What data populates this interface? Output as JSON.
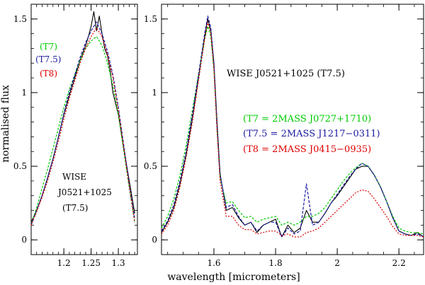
{
  "chart_data": [
    {
      "type": "line",
      "panel": "left",
      "xlim": [
        1.14,
        1.335
      ],
      "ylim": [
        -0.1,
        1.6
      ],
      "xticks": [
        1.2,
        1.25,
        1.3
      ],
      "xtick_labels": [
        "1.2",
        "1.25",
        "1.3"
      ],
      "yticks": [
        0,
        0.5,
        1,
        1.5
      ],
      "ytick_labels": [
        "0",
        "0.5",
        "1",
        "1.5"
      ],
      "ylabel": "normalised flux",
      "legend": [
        {
          "label": "(T7)",
          "color": "#00cc00"
        },
        {
          "label": "(T7.5)",
          "color": "#1a1aa0"
        },
        {
          "label": "(T8)",
          "color": "#dd0000"
        }
      ],
      "annotation": [
        "WISE",
        "J0521+1025",
        "(T7.5)"
      ],
      "series": [
        {
          "color": "#000000",
          "x": [
            1.14,
            1.15,
            1.16,
            1.17,
            1.18,
            1.19,
            1.2,
            1.21,
            1.22,
            1.23,
            1.24,
            1.245,
            1.25,
            1.255,
            1.26,
            1.265,
            1.27,
            1.275,
            1.28,
            1.285,
            1.29,
            1.3,
            1.31,
            1.32,
            1.33
          ],
          "y": [
            0.12,
            0.2,
            0.3,
            0.42,
            0.55,
            0.7,
            0.85,
            0.98,
            1.1,
            1.22,
            1.32,
            1.38,
            1.45,
            1.55,
            1.42,
            1.52,
            1.4,
            1.3,
            1.25,
            1.15,
            1.0,
            0.85,
            0.62,
            0.4,
            0.18
          ]
        },
        {
          "color": "#00cc00",
          "x": [
            1.14,
            1.15,
            1.16,
            1.17,
            1.18,
            1.19,
            1.2,
            1.21,
            1.22,
            1.23,
            1.24,
            1.25,
            1.26,
            1.27,
            1.28,
            1.29,
            1.3,
            1.31,
            1.32,
            1.33
          ],
          "y": [
            0.1,
            0.22,
            0.35,
            0.48,
            0.62,
            0.76,
            0.9,
            1.02,
            1.12,
            1.22,
            1.3,
            1.35,
            1.38,
            1.32,
            1.2,
            1.05,
            0.85,
            0.6,
            0.35,
            0.12
          ]
        },
        {
          "color": "#1a1aa0",
          "x": [
            1.14,
            1.15,
            1.16,
            1.17,
            1.18,
            1.19,
            1.2,
            1.21,
            1.22,
            1.23,
            1.24,
            1.25,
            1.26,
            1.27,
            1.28,
            1.29,
            1.3,
            1.31,
            1.32,
            1.33
          ],
          "y": [
            0.1,
            0.2,
            0.3,
            0.42,
            0.55,
            0.7,
            0.86,
            1.0,
            1.12,
            1.24,
            1.34,
            1.42,
            1.48,
            1.4,
            1.28,
            1.12,
            0.9,
            0.64,
            0.38,
            0.14
          ]
        },
        {
          "color": "#dd0000",
          "x": [
            1.14,
            1.15,
            1.16,
            1.17,
            1.18,
            1.19,
            1.2,
            1.21,
            1.22,
            1.23,
            1.24,
            1.25,
            1.26,
            1.27,
            1.28,
            1.29,
            1.3,
            1.31,
            1.32,
            1.33
          ],
          "y": [
            0.1,
            0.19,
            0.29,
            0.4,
            0.53,
            0.67,
            0.82,
            0.96,
            1.08,
            1.2,
            1.3,
            1.38,
            1.44,
            1.38,
            1.26,
            1.1,
            0.88,
            0.62,
            0.36,
            0.12
          ]
        }
      ]
    },
    {
      "type": "line",
      "panel": "right",
      "xlim": [
        1.43,
        2.28
      ],
      "ylim": [
        -0.1,
        1.6
      ],
      "xticks": [
        1.6,
        1.8,
        2,
        2.2
      ],
      "xtick_labels": [
        "1.6",
        "1.8",
        "2",
        "2.2"
      ],
      "yticks": [
        0,
        0.5,
        1,
        1.5
      ],
      "ytick_labels": [
        "0",
        "0.5",
        "1",
        "1.5"
      ],
      "xlabel": "wavelength [micrometers]",
      "title": "WISE  J0521+1025  (T7.5)",
      "legend": [
        {
          "label": "(T7  =  2MASS  J0727+1710)",
          "color": "#00cc00"
        },
        {
          "label": "(T7.5  =  2MASS  J1217−0311)",
          "color": "#1a1aa0"
        },
        {
          "label": "(T8  =  2MASS  J0415−0935)",
          "color": "#dd0000"
        }
      ],
      "series": [
        {
          "color": "#000000",
          "x": [
            1.43,
            1.45,
            1.47,
            1.49,
            1.51,
            1.53,
            1.55,
            1.57,
            1.58,
            1.59,
            1.6,
            1.61,
            1.62,
            1.64,
            1.66,
            1.68,
            1.7,
            1.72,
            1.74,
            1.76,
            1.78,
            1.8,
            1.82,
            1.84,
            1.86,
            1.88,
            1.9,
            1.92,
            1.94,
            1.96,
            1.98,
            2.0,
            2.02,
            2.04,
            2.06,
            2.08,
            2.1,
            2.12,
            2.14,
            2.16,
            2.18,
            2.2,
            2.22,
            2.24,
            2.26,
            2.28
          ],
          "y": [
            0.05,
            0.12,
            0.22,
            0.38,
            0.58,
            0.82,
            1.1,
            1.38,
            1.5,
            1.42,
            1.2,
            0.8,
            0.45,
            0.2,
            0.22,
            0.15,
            0.1,
            0.12,
            0.05,
            0.1,
            0.12,
            0.14,
            0.02,
            0.1,
            0.05,
            0.08,
            0.2,
            0.12,
            0.12,
            0.18,
            0.25,
            0.3,
            0.36,
            0.42,
            0.48,
            0.5,
            0.5,
            0.44,
            0.36,
            0.26,
            0.15,
            0.06,
            0.04,
            0.03,
            0.05,
            0.02
          ]
        },
        {
          "color": "#00cc00",
          "x": [
            1.43,
            1.45,
            1.47,
            1.49,
            1.51,
            1.53,
            1.55,
            1.57,
            1.58,
            1.59,
            1.6,
            1.61,
            1.62,
            1.64,
            1.66,
            1.68,
            1.7,
            1.72,
            1.74,
            1.76,
            1.78,
            1.8,
            1.82,
            1.84,
            1.86,
            1.88,
            1.9,
            1.92,
            1.94,
            1.96,
            1.98,
            2.0,
            2.02,
            2.04,
            2.06,
            2.08,
            2.1,
            2.12,
            2.14,
            2.16,
            2.18,
            2.2,
            2.22,
            2.24,
            2.26,
            2.28
          ],
          "y": [
            0.08,
            0.16,
            0.28,
            0.44,
            0.64,
            0.88,
            1.12,
            1.36,
            1.45,
            1.38,
            1.15,
            0.75,
            0.42,
            0.25,
            0.26,
            0.2,
            0.15,
            0.16,
            0.12,
            0.14,
            0.15,
            0.16,
            0.1,
            0.12,
            0.1,
            0.12,
            0.16,
            0.16,
            0.18,
            0.22,
            0.28,
            0.34,
            0.4,
            0.45,
            0.49,
            0.52,
            0.5,
            0.44,
            0.36,
            0.26,
            0.16,
            0.08,
            0.06,
            0.05,
            0.05,
            0.04
          ]
        },
        {
          "color": "#1a1aa0",
          "x": [
            1.43,
            1.45,
            1.47,
            1.49,
            1.51,
            1.53,
            1.55,
            1.57,
            1.58,
            1.59,
            1.6,
            1.61,
            1.62,
            1.64,
            1.66,
            1.68,
            1.7,
            1.72,
            1.74,
            1.76,
            1.78,
            1.8,
            1.82,
            1.84,
            1.86,
            1.88,
            1.9,
            1.92,
            1.94,
            1.96,
            1.98,
            2.0,
            2.02,
            2.04,
            2.06,
            2.08,
            2.1,
            2.12,
            2.14,
            2.16,
            2.18,
            2.2,
            2.22,
            2.24,
            2.26,
            2.28
          ],
          "y": [
            0.06,
            0.13,
            0.24,
            0.4,
            0.6,
            0.85,
            1.12,
            1.4,
            1.52,
            1.44,
            1.2,
            0.78,
            0.44,
            0.22,
            0.24,
            0.16,
            0.1,
            0.12,
            0.06,
            0.1,
            0.12,
            0.12,
            0.02,
            0.08,
            0.04,
            0.06,
            0.38,
            0.1,
            0.12,
            0.18,
            0.25,
            0.31,
            0.37,
            0.43,
            0.48,
            0.52,
            0.5,
            0.44,
            0.36,
            0.26,
            0.15,
            0.06,
            0.04,
            0.03,
            0.04,
            0.02
          ]
        },
        {
          "color": "#dd0000",
          "x": [
            1.43,
            1.45,
            1.47,
            1.49,
            1.51,
            1.53,
            1.55,
            1.57,
            1.58,
            1.59,
            1.6,
            1.61,
            1.62,
            1.64,
            1.66,
            1.68,
            1.7,
            1.72,
            1.74,
            1.76,
            1.78,
            1.8,
            1.82,
            1.84,
            1.86,
            1.88,
            1.9,
            1.92,
            1.94,
            1.96,
            1.98,
            2.0,
            2.02,
            2.04,
            2.06,
            2.08,
            2.1,
            2.12,
            2.14,
            2.16,
            2.18,
            2.2,
            2.22,
            2.24,
            2.26,
            2.28
          ],
          "y": [
            0.04,
            0.1,
            0.2,
            0.36,
            0.56,
            0.8,
            1.08,
            1.36,
            1.48,
            1.4,
            1.16,
            0.74,
            0.4,
            0.16,
            0.16,
            0.1,
            0.07,
            0.07,
            0.04,
            0.05,
            0.06,
            0.06,
            0.03,
            0.04,
            0.02,
            0.02,
            0.05,
            0.06,
            0.08,
            0.12,
            0.16,
            0.2,
            0.24,
            0.28,
            0.32,
            0.34,
            0.33,
            0.28,
            0.22,
            0.16,
            0.09,
            0.04,
            0.03,
            0.03,
            0.03,
            0.02
          ]
        }
      ]
    }
  ]
}
